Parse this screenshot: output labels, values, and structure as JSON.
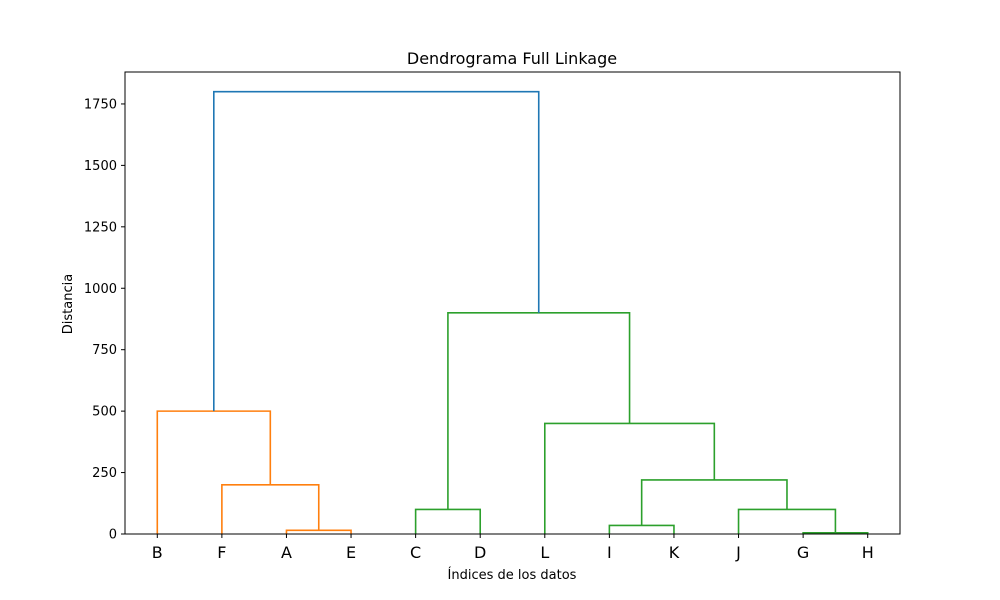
{
  "chart_data": {
    "type": "dendrogram",
    "title": "Dendrograma Full Linkage",
    "xlabel": "Índices de los datos",
    "ylabel": "Distancia",
    "ylim": [
      0,
      1880
    ],
    "yticks": [
      0,
      250,
      500,
      750,
      1000,
      1250,
      1500,
      1750
    ],
    "leaves": [
      "B",
      "F",
      "A",
      "E",
      "C",
      "D",
      "L",
      "I",
      "K",
      "J",
      "G",
      "H"
    ],
    "colors": {
      "cluster_1": "#ff7f0e",
      "cluster_2": "#2ca02c",
      "root": "#1f77b4"
    },
    "merges": [
      {
        "left": "A",
        "right": "E",
        "height": 15,
        "color": "cluster_1"
      },
      {
        "left": "F",
        "right": "A+E",
        "height": 200,
        "color": "cluster_1"
      },
      {
        "left": "B",
        "right": "F+A+E",
        "height": 500,
        "color": "cluster_1"
      },
      {
        "left": "C",
        "right": "D",
        "height": 100,
        "color": "cluster_2"
      },
      {
        "left": "G",
        "right": "H",
        "height": 5,
        "color": "cluster_2"
      },
      {
        "left": "I",
        "right": "K",
        "height": 35,
        "color": "cluster_2"
      },
      {
        "left": "J",
        "right": "G+H",
        "height": 100,
        "color": "cluster_2"
      },
      {
        "left": "I+K",
        "right": "J+G+H",
        "height": 220,
        "color": "cluster_2"
      },
      {
        "left": "L",
        "right": "I+K+J+G+H",
        "height": 450,
        "color": "cluster_2"
      },
      {
        "left": "C+D",
        "right": "L+I+K+J+G+H",
        "height": 900,
        "color": "cluster_2"
      },
      {
        "left": "B+F+A+E",
        "right": "C+D+L+I+K+J+G+H",
        "height": 1800,
        "color": "root"
      }
    ]
  }
}
